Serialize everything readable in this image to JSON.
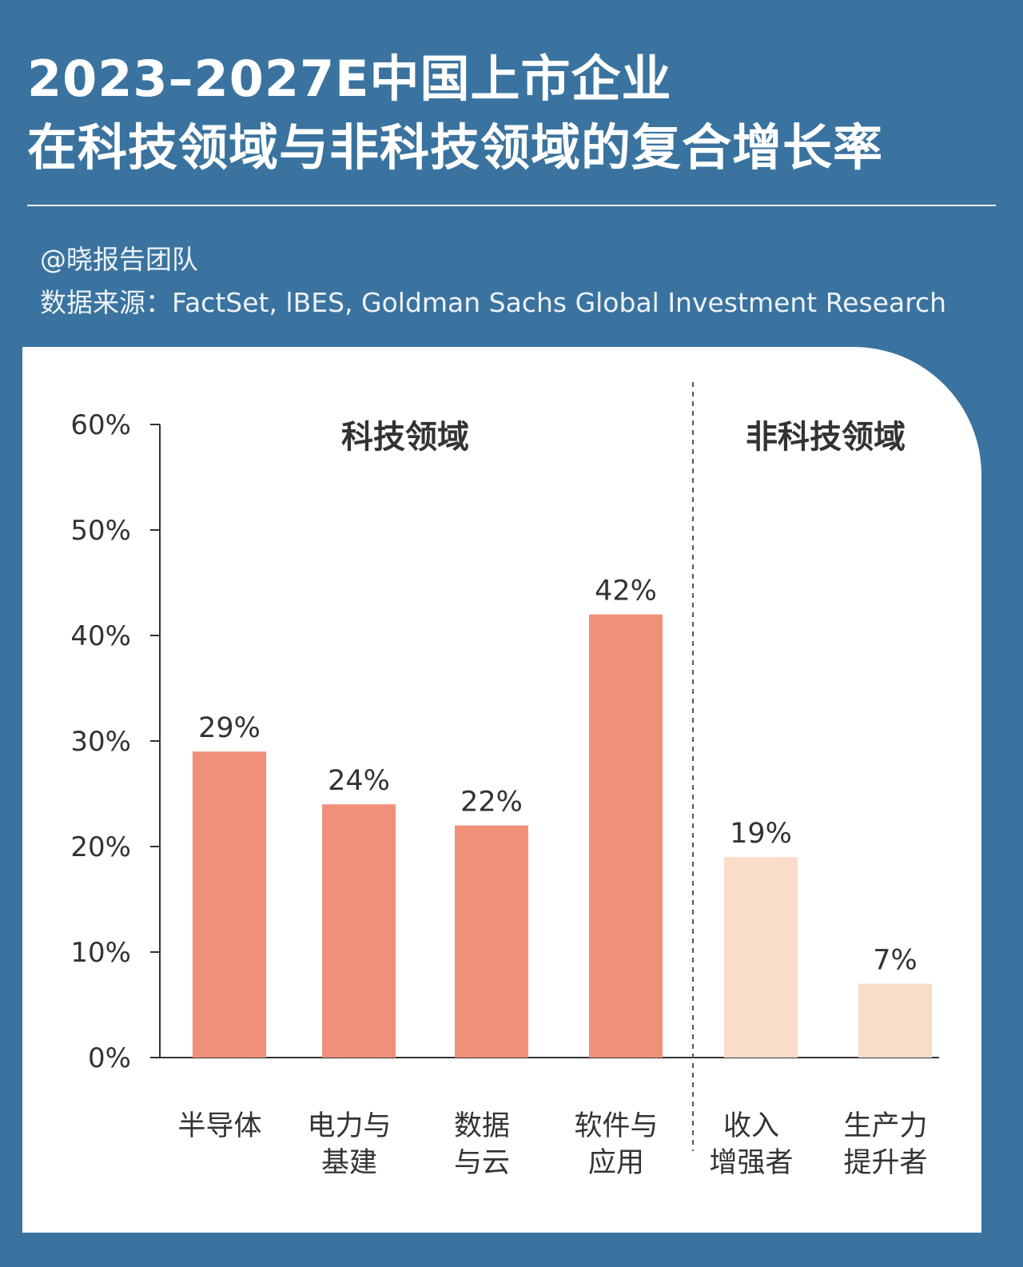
{
  "header": {
    "title_line1": "2023–2027E中国上市企业",
    "title_line2": "在科技领域与非科技领域的复合增长率",
    "credit": "@晓报告团队",
    "source": "数据来源：FactSet, lBES, Goldman Sachs Global Investment Research"
  },
  "colors": {
    "background": "#3a739f",
    "tech_bar": "#f0907b",
    "non_tech_bar": "#f9dcc9"
  },
  "chart_data": {
    "type": "bar",
    "title": "2023–2027E中国上市企业在科技领域与非科技领域的复合增长率",
    "ylim": [
      0,
      60
    ],
    "yticks": [
      "0%",
      "10%",
      "20%",
      "30%",
      "40%",
      "50%",
      "60%"
    ],
    "groups": [
      {
        "label": "科技领域",
        "color": "#f0907b"
      },
      {
        "label": "非科技领域",
        "color": "#f9dcc9"
      }
    ],
    "bars": [
      {
        "category_lines": [
          "半导体"
        ],
        "value": 29,
        "label": "29%",
        "group": 0
      },
      {
        "category_lines": [
          "电力与",
          "基建"
        ],
        "value": 24,
        "label": "24%",
        "group": 0
      },
      {
        "category_lines": [
          "数据",
          "与云"
        ],
        "value": 22,
        "label": "22%",
        "group": 0
      },
      {
        "category_lines": [
          "软件与",
          "应用"
        ],
        "value": 42,
        "label": "42%",
        "group": 0
      },
      {
        "category_lines": [
          "收入",
          "增强者"
        ],
        "value": 19,
        "label": "19%",
        "group": 1
      },
      {
        "category_lines": [
          "生产力",
          "提升者"
        ],
        "value": 7,
        "label": "7%",
        "group": 1
      }
    ],
    "grid": false,
    "legend": "none"
  }
}
